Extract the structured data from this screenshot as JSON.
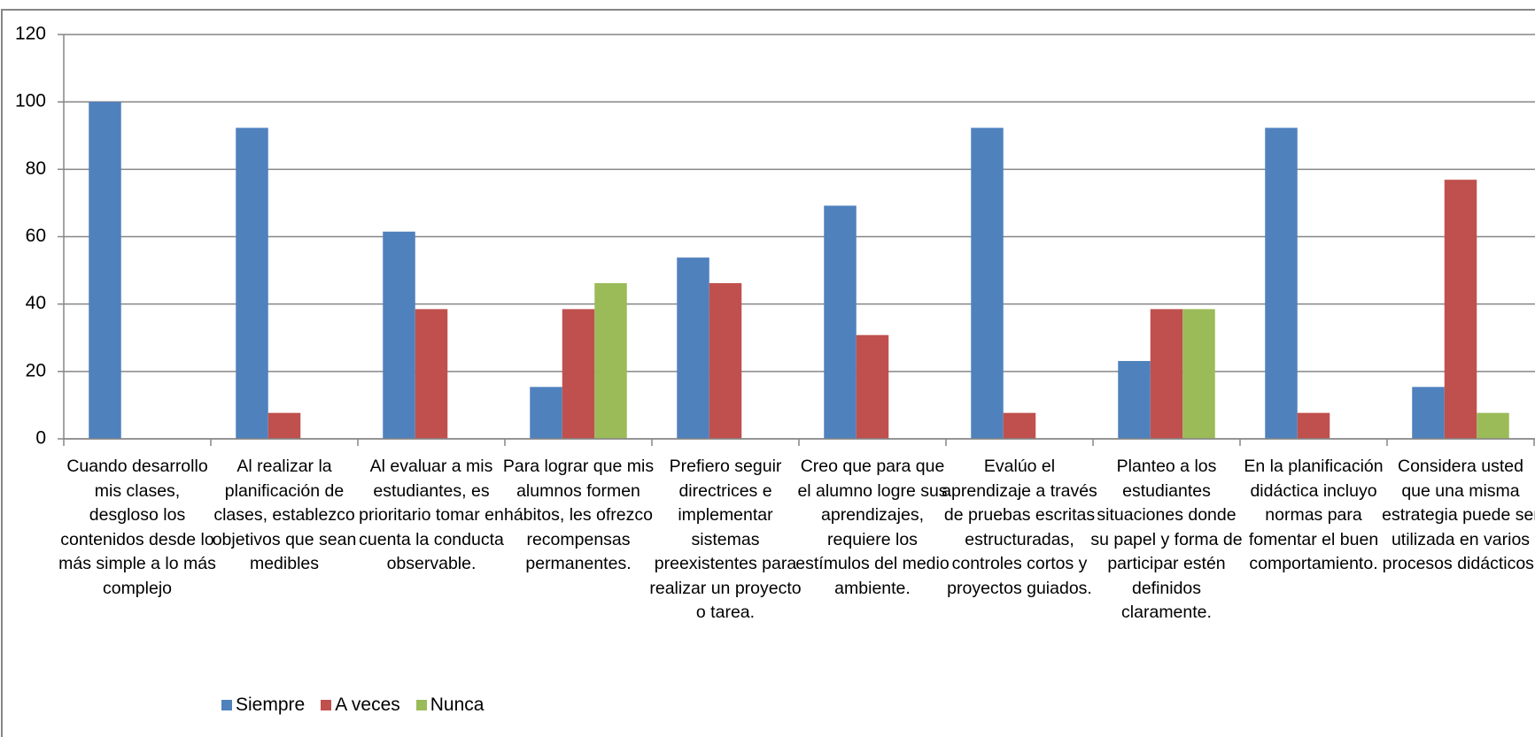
{
  "chart_data": {
    "type": "bar",
    "categories": [
      "Cuando desarrollo mis clases, desgloso los contenidos desde lo más simple a lo más complejo",
      "Al realizar la planificación de clases, establezco objetivos que sean medibles",
      "Al evaluar a mis estudiantes, es prioritario tomar en cuenta la conducta observable.",
      "Para lograr que mis alumnos formen hábitos, les ofrezco recompensas permanentes.",
      "Prefiero seguir directrices e implementar sistemas preexistentes para realizar un proyecto o tarea.",
      "Creo que para que el alumno logre sus aprendizajes, requiere los estímulos del medio ambiente.",
      "Evalúo el aprendizaje a través de pruebas escritas estructuradas, controles cortos y proyectos guiados.",
      "Planteo a los estudiantes situaciones donde su papel y forma de participar estén definidos claramente.",
      "En la planificación didáctica incluyo normas para fomentar el buen comportamiento.",
      "Considera usted que una misma estrategia puede ser utilizada en varios procesos didácticos."
    ],
    "series": [
      {
        "name": "Siempre",
        "color": "#4f81bd",
        "values": [
          100,
          92.3,
          61.5,
          15.4,
          53.8,
          69.2,
          92.3,
          23.1,
          92.3,
          15.4
        ]
      },
      {
        "name": "A veces",
        "color": "#c0504d",
        "values": [
          0,
          7.7,
          38.5,
          38.5,
          46.2,
          30.8,
          7.7,
          38.5,
          7.7,
          76.9
        ]
      },
      {
        "name": "Nunca",
        "color": "#9bbb59",
        "values": [
          0,
          0,
          0,
          46.2,
          0,
          0,
          0,
          38.5,
          0,
          7.7
        ]
      }
    ],
    "ylim": [
      0,
      120
    ],
    "yticks": [
      0,
      20,
      40,
      60,
      80,
      100,
      120
    ],
    "grid": true,
    "legend": "bottom"
  }
}
